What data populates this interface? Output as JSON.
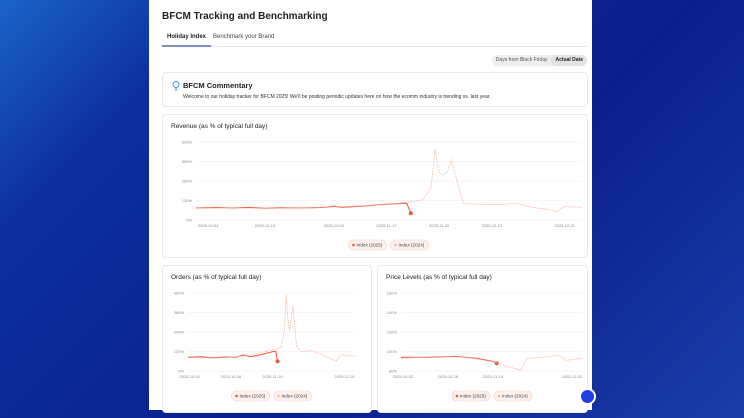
{
  "page": {
    "title": "BFCM Tracking and Benchmarking",
    "tabs": [
      {
        "label": "Holiday Index",
        "active": true
      },
      {
        "label": "Benchmark your Brand",
        "active": false
      }
    ],
    "toggle": {
      "options": [
        "Days from Black Friday",
        "Actual Date"
      ],
      "selected": "Actual Date"
    },
    "commentary": {
      "icon": "lightbulb-icon",
      "title": "BFCM Commentary",
      "text": "Welcome to our holiday tracker for BFCM 2025! We'll be posting periodic updates here on how the ecomm industry is trending vs. last year."
    }
  },
  "colors": {
    "series2025": "#f0553a",
    "series2024": "#f5b49f",
    "accent": "#7b8fb8",
    "chat": "#1f3fe0"
  },
  "chart_data": [
    {
      "id": "revenue",
      "type": "line",
      "title": "Revenue (as % of typical full day)",
      "xlim": [
        "2025-10-01",
        "2026-01-04"
      ],
      "ylim": [
        0,
        520
      ],
      "yticks": [
        "0%",
        "130%",
        "260%",
        "390%",
        "520%"
      ],
      "ytick_values": [
        0,
        130,
        260,
        390,
        520
      ],
      "xticks": [
        "2025-10-04",
        "2025-10-18",
        "2025-11-04",
        "2025-11-17",
        "2025-11-30",
        "2025-12-13",
        "2025-12-31"
      ],
      "series": [
        {
          "name": "Index (2025)",
          "style": "solid",
          "points": [
            [
              "2025-10-01",
              80
            ],
            [
              "2025-10-06",
              83
            ],
            [
              "2025-10-10",
              80
            ],
            [
              "2025-10-14",
              84
            ],
            [
              "2025-10-18",
              79
            ],
            [
              "2025-10-22",
              82
            ],
            [
              "2025-10-26",
              80
            ],
            [
              "2025-10-30",
              82
            ],
            [
              "2025-11-02",
              85
            ],
            [
              "2025-11-04",
              92
            ],
            [
              "2025-11-06",
              85
            ],
            [
              "2025-11-10",
              90
            ],
            [
              "2025-11-13",
              97
            ],
            [
              "2025-11-16",
              103
            ],
            [
              "2025-11-19",
              108
            ],
            [
              "2025-11-22",
              112
            ],
            [
              "2025-11-23",
              45
            ]
          ]
        },
        {
          "name": "Index (2024)",
          "style": "dashed",
          "points": [
            [
              "2025-10-01",
              78
            ],
            [
              "2025-10-10",
              80
            ],
            [
              "2025-10-20",
              78
            ],
            [
              "2025-10-30",
              80
            ],
            [
              "2025-11-05",
              88
            ],
            [
              "2025-11-12",
              95
            ],
            [
              "2025-11-18",
              105
            ],
            [
              "2025-11-22",
              118
            ],
            [
              "2025-11-26",
              135
            ],
            [
              "2025-11-28",
              220
            ],
            [
              "2025-11-29",
              470
            ],
            [
              "2025-11-30",
              320
            ],
            [
              "2025-12-01",
              300
            ],
            [
              "2025-12-02",
              320
            ],
            [
              "2025-12-03",
              400
            ],
            [
              "2025-12-05",
              200
            ],
            [
              "2025-12-06",
              110
            ],
            [
              "2025-12-10",
              105
            ],
            [
              "2025-12-15",
              102
            ],
            [
              "2025-12-19",
              112
            ],
            [
              "2025-12-23",
              85
            ],
            [
              "2025-12-27",
              70
            ],
            [
              "2025-12-29",
              55
            ],
            [
              "2025-12-31",
              90
            ],
            [
              "2026-01-04",
              85
            ]
          ]
        }
      ]
    },
    {
      "id": "orders",
      "type": "line",
      "title": "Orders (as % of typical full day)",
      "xlim": [
        "2025-10-01",
        "2026-01-06"
      ],
      "ylim": [
        0,
        480
      ],
      "yticks": [
        "0%",
        "120%",
        "240%",
        "360%",
        "480%"
      ],
      "ytick_values": [
        0,
        120,
        240,
        360,
        480
      ],
      "xticks": [
        "2025-10-02",
        "2025-10-26",
        "2025-11-19",
        "2025-12-31"
      ],
      "series": [
        {
          "name": "Index (2025)",
          "style": "solid",
          "points": [
            [
              "2025-10-01",
              85
            ],
            [
              "2025-10-08",
              88
            ],
            [
              "2025-10-15",
              82
            ],
            [
              "2025-10-22",
              86
            ],
            [
              "2025-10-29",
              84
            ],
            [
              "2025-11-02",
              100
            ],
            [
              "2025-11-06",
              88
            ],
            [
              "2025-11-10",
              95
            ],
            [
              "2025-11-15",
              108
            ],
            [
              "2025-11-19",
              118
            ],
            [
              "2025-11-21",
              122
            ],
            [
              "2025-11-22",
              60
            ]
          ]
        },
        {
          "name": "Index (2024)",
          "style": "dashed",
          "points": [
            [
              "2025-10-01",
              82
            ],
            [
              "2025-10-20",
              80
            ],
            [
              "2025-11-05",
              95
            ],
            [
              "2025-11-19",
              130
            ],
            [
              "2025-11-24",
              145
            ],
            [
              "2025-11-26",
              250
            ],
            [
              "2025-11-27",
              470
            ],
            [
              "2025-11-28",
              320
            ],
            [
              "2025-11-29",
              250
            ],
            [
              "2025-12-01",
              400
            ],
            [
              "2025-12-03",
              150
            ],
            [
              "2025-12-06",
              120
            ],
            [
              "2025-12-12",
              125
            ],
            [
              "2025-12-18",
              100
            ],
            [
              "2025-12-26",
              60
            ],
            [
              "2025-12-29",
              100
            ],
            [
              "2026-01-06",
              90
            ]
          ]
        }
      ]
    },
    {
      "id": "price",
      "type": "line",
      "title": "Price Levels (as % of typical full day)",
      "xlim": [
        "2025-10-01",
        "2026-01-06"
      ],
      "ylim": [
        80,
        160
      ],
      "yticks": [
        "80%",
        "100%",
        "120%",
        "140%",
        "160%"
      ],
      "ytick_values": [
        80,
        100,
        120,
        140,
        160
      ],
      "xticks": [
        "2025-10-02",
        "2025-10-26",
        "2025-11-19",
        "2025-12-31"
      ],
      "series": [
        {
          "name": "Index (2025)",
          "style": "solid",
          "points": [
            [
              "2025-10-01",
              94
            ],
            [
              "2025-10-15",
              94
            ],
            [
              "2025-10-30",
              95
            ],
            [
              "2025-11-10",
              93
            ],
            [
              "2025-11-19",
              90
            ],
            [
              "2025-11-21",
              88
            ]
          ]
        },
        {
          "name": "Index (2024)",
          "style": "dashed",
          "points": [
            [
              "2025-10-01",
              93
            ],
            [
              "2025-10-20",
              95
            ],
            [
              "2025-11-05",
              94
            ],
            [
              "2025-11-20",
              89
            ],
            [
              "2025-11-28",
              84
            ],
            [
              "2025-12-04",
              81
            ],
            [
              "2025-12-07",
              93
            ],
            [
              "2025-12-15",
              94
            ],
            [
              "2025-12-24",
              96
            ],
            [
              "2025-12-28",
              91
            ],
            [
              "2026-01-06",
              93
            ]
          ]
        }
      ]
    }
  ]
}
